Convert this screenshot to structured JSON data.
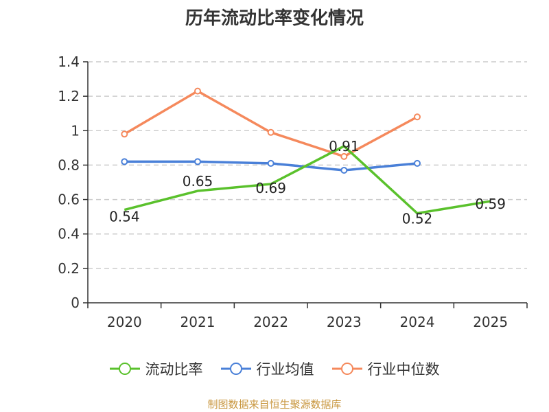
{
  "chart_data": {
    "type": "line",
    "title": "历年流动比率变化情况",
    "categories": [
      "2020",
      "2021",
      "2022",
      "2023",
      "2024",
      "2025"
    ],
    "ylim": [
      0,
      1.4
    ],
    "yticks": [
      "0",
      "0.2",
      "0.4",
      "0.6",
      "0.8",
      "1",
      "1.2",
      "1.4"
    ],
    "grid": true,
    "legend_position": "bottom",
    "series": [
      {
        "name": "流动比率",
        "color": "#5ac12c",
        "values": [
          0.54,
          0.65,
          0.69,
          0.91,
          0.52,
          0.59
        ],
        "labels": [
          "0.54",
          "0.65",
          "0.69",
          "0.91",
          "0.52",
          "0.59"
        ]
      },
      {
        "name": "行业均值",
        "color": "#4a80d8",
        "values": [
          0.82,
          0.82,
          0.81,
          0.77,
          0.81,
          null
        ]
      },
      {
        "name": "行业中位数",
        "color": "#f5895c",
        "values": [
          0.98,
          1.23,
          0.99,
          0.85,
          1.08,
          null
        ]
      }
    ]
  },
  "source": "制图数据来自恒生聚源数据库"
}
